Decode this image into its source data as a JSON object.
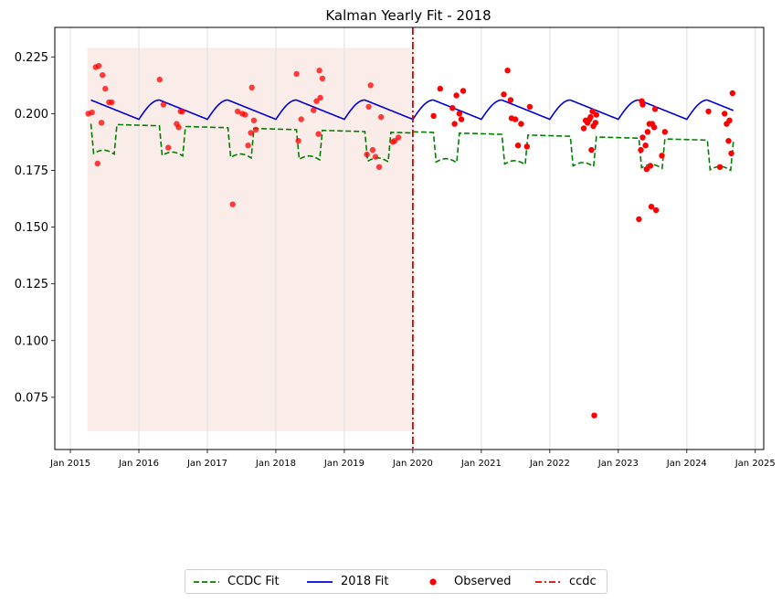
{
  "chart_data": {
    "type": "line",
    "title": "Kalman Yearly Fit - 2018",
    "xlabel": "",
    "ylabel": "",
    "x_range": [
      "2014-10-10",
      "2025-02-15"
    ],
    "ylim": [
      0.052,
      0.238
    ],
    "x_ticks": [
      "Jan 2015",
      "Jan 2016",
      "Jan 2017",
      "Jan 2018",
      "Jan 2019",
      "Jan 2020",
      "Jan 2021",
      "Jan 2022",
      "Jan 2023",
      "Jan 2024",
      "Jan 2025"
    ],
    "y_ticks": [
      "0.075",
      "0.100",
      "0.125",
      "0.150",
      "0.175",
      "0.200",
      "0.225"
    ],
    "vertical_gridlines": "light grey at each yearly tick",
    "shaded_region": {
      "x": [
        "2015-04-01",
        "2020-01-01"
      ],
      "y": [
        0.06,
        0.229
      ],
      "color": "#f5dcd6"
    },
    "breakpoint": {
      "name": "ccdc",
      "x": "2020-01-01",
      "color": "#dd0000",
      "style": "dash-dot"
    },
    "series": [
      {
        "name": "CCDC Fit",
        "style": "dashed",
        "color": "#008000",
        "segments": [
          {
            "start": 2015.3,
            "end": 2020.0,
            "base_start": 0.1955,
            "base_end": 0.1915,
            "dip": 0.013
          },
          {
            "start": 2020.0,
            "end": 2024.68,
            "base_start": 0.192,
            "base_end": 0.188,
            "dip": 0.013
          }
        ]
      },
      {
        "name": "2018 Fit",
        "style": "solid",
        "color": "#0000dd",
        "min_value": 0.1975,
        "max_value": 0.206,
        "start": 2015.3,
        "end": 2024.68
      }
    ],
    "observed": {
      "name": "Observed",
      "color": "#ff0000",
      "points": [
        [
          "2015-04-06",
          0.2
        ],
        [
          "2015-04-26",
          0.2005
        ],
        [
          "2015-05-16",
          0.2205
        ],
        [
          "2015-06-01",
          0.221
        ],
        [
          "2015-05-26",
          0.178
        ],
        [
          "2015-06-16",
          0.196
        ],
        [
          "2015-06-21",
          0.217
        ],
        [
          "2015-07-06",
          0.211
        ],
        [
          "2015-07-26",
          0.205
        ],
        [
          "2015-08-10",
          0.205
        ],
        [
          "2016-04-21",
          0.215
        ],
        [
          "2016-05-11",
          0.204
        ],
        [
          "2016-06-06",
          0.185
        ],
        [
          "2016-07-21",
          0.1955
        ],
        [
          "2016-08-01",
          0.194
        ],
        [
          "2016-08-11",
          0.201
        ],
        [
          "2016-08-21",
          0.201
        ],
        [
          "2017-05-16",
          0.16
        ],
        [
          "2017-06-11",
          0.201
        ],
        [
          "2017-07-06",
          0.2
        ],
        [
          "2017-07-21",
          0.1995
        ],
        [
          "2017-08-06",
          0.186
        ],
        [
          "2017-08-21",
          0.1915
        ],
        [
          "2017-08-26",
          0.2115
        ],
        [
          "2017-09-06",
          0.197
        ],
        [
          "2017-09-16",
          0.193
        ],
        [
          "2018-04-21",
          0.2175
        ],
        [
          "2018-05-01",
          0.188
        ],
        [
          "2018-05-16",
          0.1975
        ],
        [
          "2018-07-21",
          0.2015
        ],
        [
          "2018-08-06",
          0.2055
        ],
        [
          "2018-08-16",
          0.191
        ],
        [
          "2018-08-21",
          0.219
        ],
        [
          "2018-08-26",
          0.207
        ],
        [
          "2018-09-06",
          0.2155
        ],
        [
          "2019-05-01",
          0.182
        ],
        [
          "2019-05-11",
          0.203
        ],
        [
          "2019-05-21",
          0.2125
        ],
        [
          "2019-06-01",
          0.184
        ],
        [
          "2019-06-16",
          0.181
        ],
        [
          "2019-07-06",
          0.1765
        ],
        [
          "2019-07-16",
          0.1985
        ],
        [
          "2019-09-16",
          0.1875
        ],
        [
          "2019-09-26",
          0.188
        ],
        [
          "2019-10-16",
          0.1895
        ],
        [
          "2020-04-21",
          0.199
        ],
        [
          "2020-05-26",
          0.211
        ],
        [
          "2020-07-31",
          0.2025
        ],
        [
          "2020-08-11",
          0.1955
        ],
        [
          "2020-08-21",
          0.208
        ],
        [
          "2020-09-06",
          0.2
        ],
        [
          "2020-09-16",
          0.1975
        ],
        [
          "2020-09-26",
          0.21
        ],
        [
          "2021-05-01",
          0.2085
        ],
        [
          "2021-05-21",
          0.219
        ],
        [
          "2021-06-06",
          0.206
        ],
        [
          "2021-06-11",
          0.198
        ],
        [
          "2021-07-01",
          0.1975
        ],
        [
          "2021-07-16",
          0.186
        ],
        [
          "2021-08-01",
          0.1955
        ],
        [
          "2021-09-01",
          0.1855
        ],
        [
          "2021-09-16",
          0.203
        ],
        [
          "2022-07-01",
          0.1935
        ],
        [
          "2022-07-11",
          0.197
        ],
        [
          "2022-07-21",
          0.196
        ],
        [
          "2022-07-31",
          0.1975
        ],
        [
          "2022-08-06",
          0.1985
        ],
        [
          "2022-08-11",
          0.184
        ],
        [
          "2022-08-16",
          0.201
        ],
        [
          "2022-08-21",
          0.1945
        ],
        [
          "2022-08-26",
          0.067
        ],
        [
          "2022-09-01",
          0.196
        ],
        [
          "2022-09-06",
          0.1995
        ],
        [
          "2023-04-21",
          0.1535
        ],
        [
          "2023-05-01",
          0.184
        ],
        [
          "2023-05-06",
          0.2055
        ],
        [
          "2023-05-11",
          0.1895
        ],
        [
          "2023-05-11",
          0.204
        ],
        [
          "2023-05-26",
          0.186
        ],
        [
          "2023-06-01",
          0.1755
        ],
        [
          "2023-06-06",
          0.192
        ],
        [
          "2023-06-16",
          0.1955
        ],
        [
          "2023-06-21",
          0.177
        ],
        [
          "2023-06-26",
          0.159
        ],
        [
          "2023-07-01",
          0.1955
        ],
        [
          "2023-07-11",
          0.194
        ],
        [
          "2023-07-16",
          0.202
        ],
        [
          "2023-07-21",
          0.1575
        ],
        [
          "2023-08-21",
          0.1815
        ],
        [
          "2023-09-06",
          0.192
        ],
        [
          "2024-04-26",
          0.201
        ],
        [
          "2024-06-26",
          0.1765
        ],
        [
          "2024-07-21",
          0.2
        ],
        [
          "2024-08-01",
          0.1955
        ],
        [
          "2024-08-11",
          0.188
        ],
        [
          "2024-08-16",
          0.197
        ],
        [
          "2024-08-26",
          0.1825
        ],
        [
          "2024-09-01",
          0.209
        ]
      ]
    },
    "legend": {
      "placement": "bottom-center",
      "entries": [
        "CCDC Fit",
        "2018 Fit",
        "Observed",
        "ccdc"
      ]
    }
  }
}
